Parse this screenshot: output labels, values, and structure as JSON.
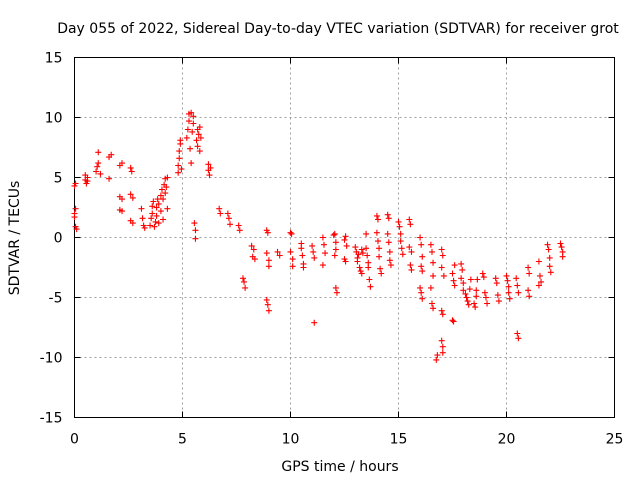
{
  "chart_data": {
    "type": "scatter",
    "title": "Day 055 of 2022, Sidereal Day-to-day VTEC variation (SDTVAR) for receiver grot",
    "xlabel": "GPS time / hours",
    "ylabel": "SDTVAR / TECUs",
    "xlim": [
      0,
      25
    ],
    "ylim": [
      -15,
      15
    ],
    "xticks": [
      "0",
      "5",
      "10",
      "15",
      "20",
      "25"
    ],
    "yticks": [
      "-15",
      "-10",
      "-5",
      "0",
      "5",
      "10",
      "15"
    ],
    "grid": true,
    "marker": "plus",
    "color": "#ff0000",
    "series": [
      {
        "name": "SDTVAR",
        "points": [
          [
            0.0,
            4.3
          ],
          [
            0.05,
            4.5
          ],
          [
            0.0,
            2.0
          ],
          [
            0.0,
            1.7
          ],
          [
            0.05,
            2.4
          ],
          [
            0.05,
            0.9
          ],
          [
            0.1,
            0.7
          ],
          [
            0.5,
            4.8
          ],
          [
            0.5,
            5.2
          ],
          [
            0.55,
            4.5
          ],
          [
            0.6,
            5.0
          ],
          [
            0.6,
            4.7
          ],
          [
            1.0,
            5.5
          ],
          [
            1.05,
            5.9
          ],
          [
            1.1,
            6.2
          ],
          [
            1.1,
            7.1
          ],
          [
            1.2,
            5.3
          ],
          [
            1.6,
            4.9
          ],
          [
            1.6,
            6.7
          ],
          [
            1.7,
            6.9
          ],
          [
            2.1,
            6.0
          ],
          [
            2.2,
            6.2
          ],
          [
            2.1,
            3.4
          ],
          [
            2.2,
            3.2
          ],
          [
            2.1,
            2.3
          ],
          [
            2.2,
            2.2
          ],
          [
            2.6,
            5.8
          ],
          [
            2.65,
            5.5
          ],
          [
            2.6,
            3.6
          ],
          [
            2.7,
            3.3
          ],
          [
            2.6,
            1.4
          ],
          [
            2.7,
            1.2
          ],
          [
            3.1,
            2.4
          ],
          [
            3.15,
            1.6
          ],
          [
            3.2,
            1.0
          ],
          [
            3.25,
            0.8
          ],
          [
            3.5,
            1.0
          ],
          [
            3.55,
            1.6
          ],
          [
            3.6,
            2.0
          ],
          [
            3.6,
            2.6
          ],
          [
            3.65,
            3.0
          ],
          [
            3.7,
            0.9
          ],
          [
            3.75,
            1.3
          ],
          [
            3.8,
            1.8
          ],
          [
            3.8,
            2.5
          ],
          [
            3.85,
            3.2
          ],
          [
            3.9,
            2.8
          ],
          [
            3.9,
            1.2
          ],
          [
            4.0,
            3.5
          ],
          [
            4.0,
            2.2
          ],
          [
            4.05,
            4.0
          ],
          [
            4.1,
            3.2
          ],
          [
            4.1,
            1.5
          ],
          [
            4.15,
            4.4
          ],
          [
            4.2,
            3.7
          ],
          [
            4.2,
            4.9
          ],
          [
            4.25,
            4.2
          ],
          [
            4.3,
            5.0
          ],
          [
            4.3,
            2.4
          ],
          [
            4.8,
            5.4
          ],
          [
            4.8,
            6.0
          ],
          [
            4.85,
            6.6
          ],
          [
            4.85,
            7.2
          ],
          [
            4.9,
            7.8
          ],
          [
            4.9,
            8.1
          ],
          [
            4.95,
            5.7
          ],
          [
            5.2,
            8.3
          ],
          [
            5.25,
            9.0
          ],
          [
            5.3,
            9.7
          ],
          [
            5.3,
            10.3
          ],
          [
            5.35,
            7.4
          ],
          [
            5.4,
            10.4
          ],
          [
            5.4,
            6.2
          ],
          [
            5.45,
            8.8
          ],
          [
            5.5,
            9.5
          ],
          [
            5.5,
            10.1
          ],
          [
            5.55,
            1.2
          ],
          [
            5.6,
            0.6
          ],
          [
            5.6,
            -0.1
          ],
          [
            5.65,
            8.1
          ],
          [
            5.7,
            9.0
          ],
          [
            5.7,
            7.6
          ],
          [
            5.75,
            8.6
          ],
          [
            5.8,
            9.2
          ],
          [
            5.85,
            8.3
          ],
          [
            5.8,
            7.2
          ],
          [
            6.2,
            6.1
          ],
          [
            6.2,
            5.6
          ],
          [
            6.25,
            5.2
          ],
          [
            6.3,
            5.8
          ],
          [
            6.7,
            2.4
          ],
          [
            6.75,
            2.0
          ],
          [
            7.1,
            2.0
          ],
          [
            7.15,
            1.6
          ],
          [
            7.2,
            1.1
          ],
          [
            7.6,
            1.0
          ],
          [
            7.65,
            0.6
          ],
          [
            7.8,
            -3.4
          ],
          [
            7.85,
            -3.7
          ],
          [
            7.9,
            -4.2
          ],
          [
            8.2,
            -0.7
          ],
          [
            8.3,
            -1.0
          ],
          [
            8.25,
            -1.6
          ],
          [
            8.35,
            -1.8
          ],
          [
            8.9,
            0.6
          ],
          [
            8.95,
            0.4
          ],
          [
            8.9,
            -1.3
          ],
          [
            9.0,
            -1.9
          ],
          [
            9.0,
            -2.4
          ],
          [
            8.9,
            -5.2
          ],
          [
            8.95,
            -5.6
          ],
          [
            9.0,
            -6.1
          ],
          [
            9.4,
            -1.2
          ],
          [
            9.5,
            -1.5
          ],
          [
            10.0,
            0.4
          ],
          [
            10.05,
            0.3
          ],
          [
            10.0,
            -1.2
          ],
          [
            10.1,
            -1.8
          ],
          [
            10.1,
            -2.4
          ],
          [
            10.5,
            -0.5
          ],
          [
            10.5,
            -0.9
          ],
          [
            10.55,
            -1.5
          ],
          [
            10.6,
            -2.2
          ],
          [
            10.6,
            -2.5
          ],
          [
            11.0,
            -0.7
          ],
          [
            11.05,
            -1.2
          ],
          [
            11.1,
            -1.7
          ],
          [
            11.1,
            -7.1
          ],
          [
            11.5,
            0.0
          ],
          [
            11.55,
            -0.6
          ],
          [
            11.6,
            -1.3
          ],
          [
            11.5,
            -2.3
          ],
          [
            12.0,
            0.2
          ],
          [
            12.05,
            0.3
          ],
          [
            12.1,
            -0.4
          ],
          [
            12.1,
            -1.0
          ],
          [
            12.05,
            -1.5
          ],
          [
            12.1,
            -4.2
          ],
          [
            12.15,
            -4.6
          ],
          [
            12.5,
            -0.2
          ],
          [
            12.55,
            0.1
          ],
          [
            12.6,
            -0.7
          ],
          [
            12.5,
            -1.8
          ],
          [
            12.55,
            -2.0
          ],
          [
            13.0,
            -0.8
          ],
          [
            13.05,
            -1.2
          ],
          [
            13.1,
            -1.7
          ],
          [
            13.1,
            -2.0
          ],
          [
            13.15,
            -1.4
          ],
          [
            13.2,
            -2.5
          ],
          [
            13.25,
            -2.8
          ],
          [
            13.3,
            -1.0
          ],
          [
            13.35,
            -1.3
          ],
          [
            13.3,
            -3.0
          ],
          [
            13.5,
            -0.9
          ],
          [
            13.55,
            -1.5
          ],
          [
            13.6,
            -2.1
          ],
          [
            13.6,
            -2.5
          ],
          [
            13.65,
            -3.5
          ],
          [
            13.7,
            -4.1
          ],
          [
            13.5,
            0.3
          ],
          [
            14.0,
            1.8
          ],
          [
            14.05,
            1.5
          ],
          [
            14.0,
            0.4
          ],
          [
            14.05,
            -0.3
          ],
          [
            14.1,
            -0.9
          ],
          [
            14.1,
            -1.6
          ],
          [
            14.15,
            -2.6
          ],
          [
            14.2,
            -3.0
          ],
          [
            14.5,
            1.9
          ],
          [
            14.55,
            1.6
          ],
          [
            14.5,
            0.3
          ],
          [
            14.55,
            -0.4
          ],
          [
            14.6,
            -1.2
          ],
          [
            14.6,
            -1.9
          ],
          [
            14.65,
            -2.3
          ],
          [
            15.0,
            1.3
          ],
          [
            15.05,
            0.9
          ],
          [
            15.1,
            0.3
          ],
          [
            15.1,
            -0.3
          ],
          [
            15.15,
            -0.9
          ],
          [
            15.2,
            -1.4
          ],
          [
            15.5,
            1.5
          ],
          [
            15.55,
            1.1
          ],
          [
            15.5,
            -0.8
          ],
          [
            15.6,
            -1.2
          ],
          [
            15.55,
            -2.3
          ],
          [
            15.6,
            -2.7
          ],
          [
            16.0,
            0.0
          ],
          [
            16.05,
            -0.6
          ],
          [
            16.1,
            -1.6
          ],
          [
            16.05,
            -2.4
          ],
          [
            16.1,
            -2.8
          ],
          [
            16.0,
            -4.2
          ],
          [
            16.05,
            -4.6
          ],
          [
            16.1,
            -5.1
          ],
          [
            16.5,
            -0.6
          ],
          [
            16.55,
            -1.2
          ],
          [
            16.6,
            -2.1
          ],
          [
            16.6,
            -3.2
          ],
          [
            16.5,
            -4.2
          ],
          [
            16.55,
            -5.5
          ],
          [
            16.6,
            -5.9
          ],
          [
            16.8,
            -9.8
          ],
          [
            16.75,
            -10.2
          ],
          [
            17.0,
            -8.6
          ],
          [
            17.05,
            -9.1
          ],
          [
            17.05,
            -9.6
          ],
          [
            17.0,
            -1.0
          ],
          [
            17.05,
            -1.5
          ],
          [
            17.0,
            -2.5
          ],
          [
            17.1,
            -3.2
          ],
          [
            17.0,
            -6.1
          ],
          [
            17.05,
            -6.4
          ],
          [
            17.5,
            -6.9
          ],
          [
            17.55,
            -7.0
          ],
          [
            17.5,
            -3.0
          ],
          [
            17.55,
            -3.6
          ],
          [
            17.6,
            -4.0
          ],
          [
            17.6,
            -2.3
          ],
          [
            17.9,
            -2.2
          ],
          [
            17.95,
            -2.7
          ],
          [
            17.9,
            -3.4
          ],
          [
            18.0,
            -3.8
          ],
          [
            18.0,
            -4.4
          ],
          [
            18.1,
            -4.7
          ],
          [
            18.15,
            -5.0
          ],
          [
            18.2,
            -5.3
          ],
          [
            18.25,
            -5.6
          ],
          [
            18.3,
            -4.3
          ],
          [
            18.35,
            -3.5
          ],
          [
            18.5,
            -5.5
          ],
          [
            18.55,
            -5.8
          ],
          [
            18.6,
            -4.9
          ],
          [
            18.6,
            -4.4
          ],
          [
            18.65,
            -3.5
          ],
          [
            18.9,
            -3.0
          ],
          [
            18.95,
            -3.3
          ],
          [
            19.0,
            -4.6
          ],
          [
            19.05,
            -5.0
          ],
          [
            19.1,
            -5.5
          ],
          [
            19.5,
            -3.4
          ],
          [
            19.55,
            -3.8
          ],
          [
            19.6,
            -4.8
          ],
          [
            19.65,
            -5.3
          ],
          [
            20.0,
            -3.2
          ],
          [
            20.05,
            -3.6
          ],
          [
            20.1,
            -4.1
          ],
          [
            20.1,
            -4.6
          ],
          [
            20.15,
            -5.1
          ],
          [
            20.45,
            -3.4
          ],
          [
            20.5,
            -4.0
          ],
          [
            20.55,
            -4.6
          ],
          [
            20.5,
            -8.0
          ],
          [
            20.55,
            -8.4
          ],
          [
            21.0,
            -2.5
          ],
          [
            21.05,
            -3.0
          ],
          [
            21.0,
            -4.4
          ],
          [
            21.05,
            -4.9
          ],
          [
            21.5,
            -2.0
          ],
          [
            21.55,
            -3.2
          ],
          [
            21.6,
            -3.7
          ],
          [
            21.5,
            -4.0
          ],
          [
            21.9,
            -0.6
          ],
          [
            21.95,
            -1.0
          ],
          [
            22.0,
            -1.7
          ],
          [
            22.0,
            -2.4
          ],
          [
            22.05,
            -2.9
          ],
          [
            22.5,
            -0.5
          ],
          [
            22.55,
            -0.8
          ],
          [
            22.6,
            -1.2
          ],
          [
            22.6,
            -1.6
          ]
        ]
      }
    ]
  }
}
